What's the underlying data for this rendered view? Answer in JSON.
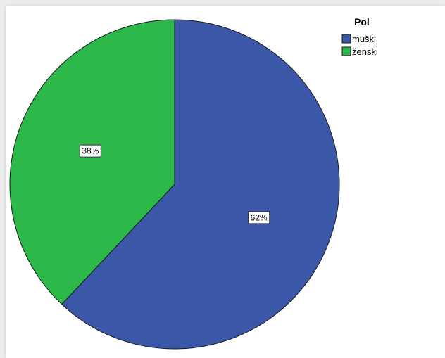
{
  "chart_data": {
    "type": "pie",
    "legend_title": "Pol",
    "legend_placement": "top-right",
    "slices": [
      {
        "label": "muški",
        "value": 62,
        "value_label": "62%",
        "color": "#3b57a8"
      },
      {
        "label": "ženski",
        "value": 38,
        "value_label": "38%",
        "color": "#2db84a"
      }
    ],
    "start": "12 o'clock",
    "direction": "clockwise"
  }
}
